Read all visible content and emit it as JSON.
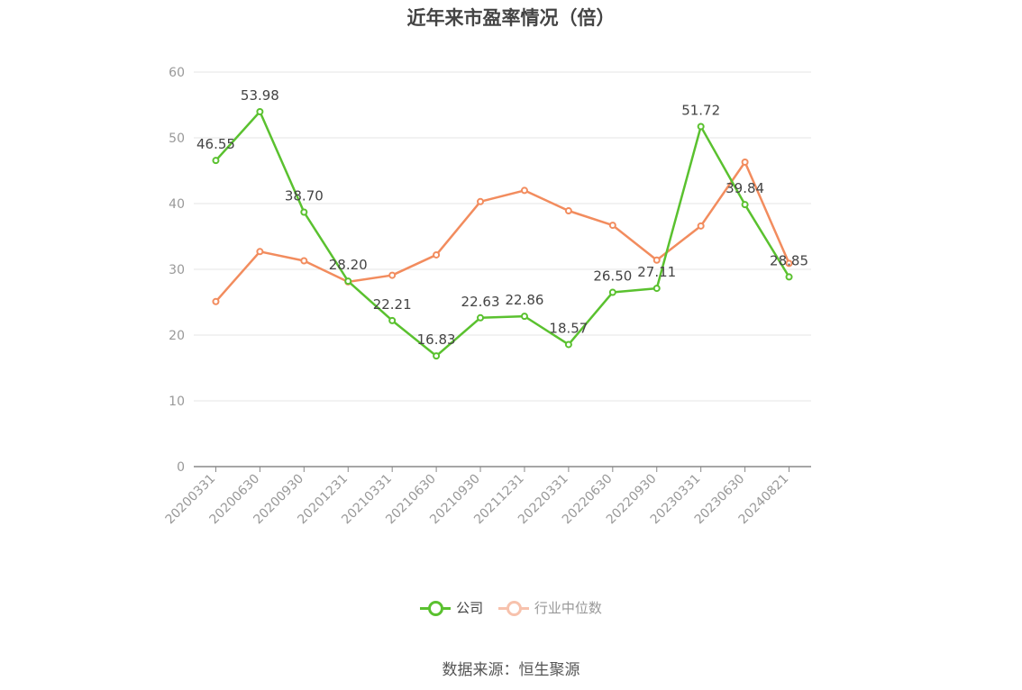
{
  "title": "近年来市盈率情况（倍）",
  "source": "数据来源：恒生聚源",
  "legend": [
    {
      "label": "公司",
      "color": "#5ac12f",
      "active": true
    },
    {
      "label": "行业中位数",
      "color": "#f7a07f",
      "active": false
    }
  ],
  "chart_data": {
    "type": "line",
    "title": "近年来市盈率情况（倍）",
    "xlabel": "",
    "ylabel": "",
    "ylim": [
      0,
      60
    ],
    "yticks": [
      0,
      10,
      20,
      30,
      40,
      50,
      60
    ],
    "grid": true,
    "legend_position": "bottom",
    "categories": [
      "20200331",
      "20200630",
      "20200930",
      "20201231",
      "20210331",
      "20210630",
      "20210930",
      "20211231",
      "20220331",
      "20220630",
      "20220930",
      "20230331",
      "20230630",
      "20240821"
    ],
    "series": [
      {
        "name": "公司",
        "color": "#5ac12f",
        "values": [
          46.55,
          53.98,
          38.7,
          28.2,
          22.21,
          16.83,
          22.63,
          22.86,
          18.57,
          26.5,
          27.11,
          51.72,
          39.84,
          28.85
        ],
        "labels": [
          "46.55",
          "53.98",
          "38.70",
          "28.20",
          "22.21",
          "16.83",
          "22.63",
          "22.86",
          "18.57",
          "26.50",
          "27.11",
          "51.72",
          "39.84",
          "28.85"
        ]
      },
      {
        "name": "行业中位数",
        "color": "#f28c5e",
        "values": [
          25.1,
          32.7,
          31.3,
          28.1,
          29.1,
          32.2,
          40.3,
          42.0,
          38.9,
          36.7,
          31.4,
          36.6,
          46.3,
          30.9
        ]
      }
    ]
  }
}
